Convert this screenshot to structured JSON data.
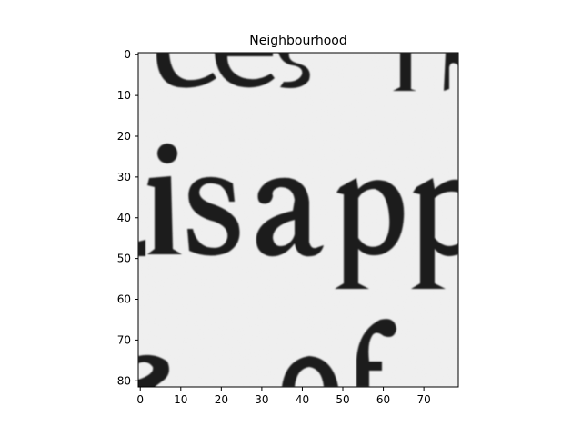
{
  "chart_data": {
    "type": "heatmap",
    "title": "Neighbourhood",
    "xlabel": "",
    "ylabel": "",
    "colormap": "gray",
    "xlim": [
      -0.5,
      78.5
    ],
    "ylim": [
      81.5,
      -0.5
    ],
    "x_ticks": [
      0,
      10,
      20,
      30,
      40,
      50,
      60,
      70
    ],
    "y_ticks": [
      0,
      10,
      20,
      30,
      40,
      50,
      60,
      70,
      80
    ],
    "grid": false,
    "image_content": "grayscale crop of scanned printed text",
    "text_in_image": [
      "isapp",
      "of"
    ]
  }
}
